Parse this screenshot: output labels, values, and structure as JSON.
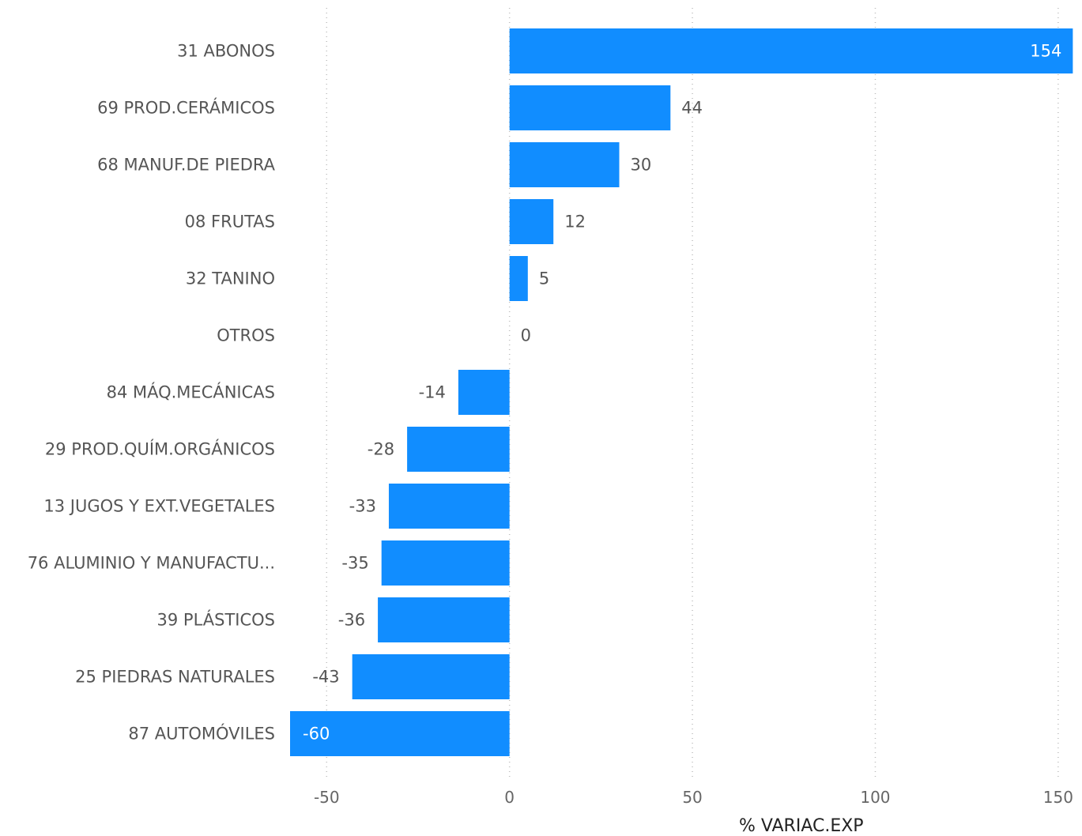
{
  "chart_data": {
    "type": "bar",
    "orientation": "horizontal",
    "categories": [
      "31 ABONOS",
      "69 PROD.CERÁMICOS",
      "68 MANUF.DE PIEDRA",
      "08 FRUTAS",
      "32 TANINO",
      "OTROS",
      "84 MÁQ.MECÁNICAS",
      "29 PROD.QUÍM.ORGÁNICOS",
      "13 JUGOS Y EXT.VEGETALES",
      "76 ALUMINIO Y MANUFACTU...",
      "39 PLÁSTICOS",
      "25 PIEDRAS NATURALES",
      "87 AUTOMÓVILES"
    ],
    "values": [
      154,
      44,
      30,
      12,
      5,
      0,
      -14,
      -28,
      -33,
      -35,
      -36,
      -43,
      -60
    ],
    "xlabel": "% VARIAC.EXP",
    "ylabel": "",
    "xlim": [
      -60,
      155
    ],
    "xticks": [
      -50,
      0,
      50,
      100,
      150
    ],
    "tick_labels": [
      "-50",
      "0",
      "50",
      "100",
      "150"
    ],
    "grid": "vertical dotted",
    "bar_color": "#118DFF"
  }
}
